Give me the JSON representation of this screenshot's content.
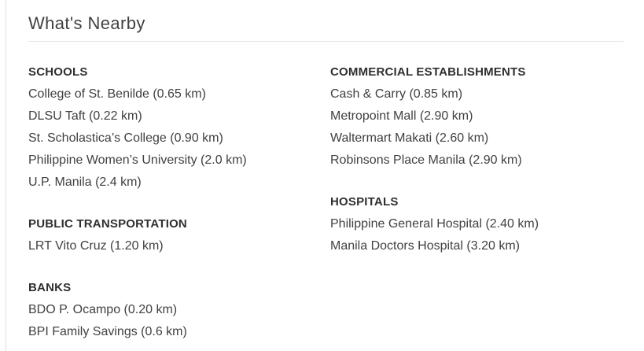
{
  "section": {
    "title": "What's Nearby"
  },
  "nearby": {
    "columns": [
      {
        "groups": [
          {
            "heading": "SCHOOLS",
            "items": [
              "College of St. Benilde (0.65 km)",
              "DLSU Taft (0.22 km)",
              "St. Scholastica’s College (0.90 km)",
              "Philippine Women’s University (2.0 km)",
              "U.P. Manila (2.4 km)"
            ]
          },
          {
            "heading": "PUBLIC TRANSPORTATION",
            "items": [
              "LRT Vito Cruz (1.20 km)"
            ]
          },
          {
            "heading": "BANKS",
            "items": [
              "BDO P. Ocampo (0.20 km)",
              "BPI Family Savings (0.6 km)"
            ]
          }
        ]
      },
      {
        "groups": [
          {
            "heading": "COMMERCIAL ESTABLISHMENTS",
            "items": [
              "Cash & Carry (0.85 km)",
              "Metropoint Mall (2.90 km)",
              "Waltermart Makati (2.60 km)",
              "Robinsons Place Manila (2.90 km)"
            ]
          },
          {
            "heading": "HOSPITALS",
            "items": [
              "Philippine General Hospital (2.40 km)",
              "Manila Doctors Hospital (3.20 km)"
            ]
          }
        ]
      }
    ]
  }
}
